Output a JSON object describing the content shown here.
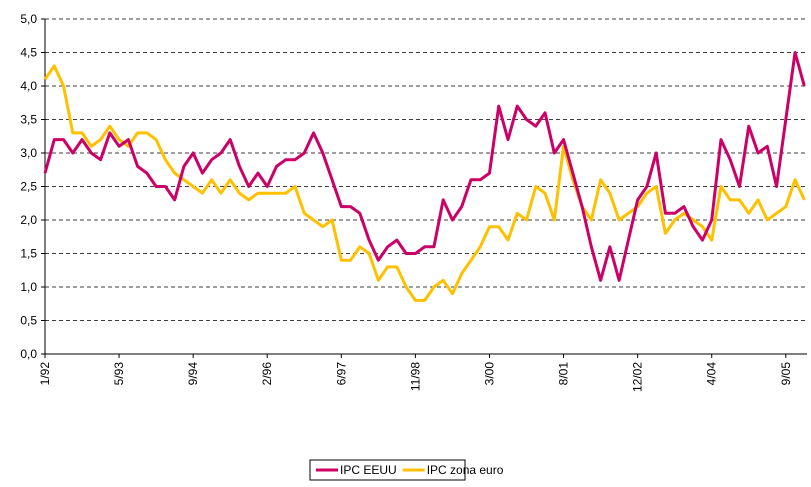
{
  "chart_data": {
    "type": "line",
    "categories": [
      "1/92",
      null,
      null,
      null,
      null,
      null,
      null,
      null,
      "5/93",
      null,
      null,
      null,
      null,
      null,
      null,
      null,
      "9/94",
      null,
      null,
      null,
      null,
      null,
      null,
      null,
      "2/96",
      null,
      null,
      null,
      null,
      null,
      null,
      null,
      "6/97",
      null,
      null,
      null,
      null,
      null,
      null,
      null,
      "11/98",
      null,
      null,
      null,
      null,
      null,
      null,
      null,
      "3/00",
      null,
      null,
      null,
      null,
      null,
      null,
      null,
      "8/01",
      null,
      null,
      null,
      null,
      null,
      null,
      null,
      "12/02",
      null,
      null,
      null,
      null,
      null,
      null,
      null,
      "4/04",
      null,
      null,
      null,
      null,
      null,
      null,
      null,
      "9/05",
      null,
      null
    ],
    "series": [
      {
        "name": "IPC EEUU",
        "color": "#cc0066",
        "values": [
          2.7,
          3.2,
          3.2,
          3.0,
          3.2,
          3.0,
          2.9,
          3.3,
          3.1,
          3.2,
          2.8,
          2.7,
          2.5,
          2.5,
          2.3,
          2.8,
          3.0,
          2.7,
          2.9,
          3.0,
          3.2,
          2.8,
          2.5,
          2.7,
          2.5,
          2.8,
          2.9,
          2.9,
          3.0,
          3.3,
          3.0,
          2.6,
          2.2,
          2.2,
          2.1,
          1.7,
          1.4,
          1.6,
          1.7,
          1.5,
          1.5,
          1.6,
          1.6,
          2.3,
          2.0,
          2.2,
          2.6,
          2.6,
          2.7,
          3.7,
          3.2,
          3.7,
          3.5,
          3.4,
          3.6,
          3.0,
          3.2,
          2.7,
          2.2,
          1.6,
          1.1,
          1.6,
          1.1,
          1.7,
          2.3,
          2.5,
          3.0,
          2.1,
          2.1,
          2.2,
          1.9,
          1.7,
          2.0,
          3.2,
          2.9,
          2.5,
          3.4,
          3.0,
          3.1,
          2.5,
          3.5,
          4.5,
          4.0
        ]
      },
      {
        "name": "IPC zona euro",
        "color": "#ffc000",
        "values": [
          4.1,
          4.3,
          4.0,
          3.3,
          3.3,
          3.1,
          3.2,
          3.4,
          3.2,
          3.1,
          3.3,
          3.3,
          3.2,
          2.9,
          2.7,
          2.6,
          2.5,
          2.4,
          2.6,
          2.4,
          2.6,
          2.4,
          2.3,
          2.4,
          2.4,
          2.4,
          2.4,
          2.5,
          2.1,
          2.0,
          1.9,
          2.0,
          1.4,
          1.4,
          1.6,
          1.5,
          1.1,
          1.3,
          1.3,
          1.0,
          0.8,
          0.8,
          1.0,
          1.1,
          0.9,
          1.2,
          1.4,
          1.6,
          1.9,
          1.9,
          1.7,
          2.1,
          2.0,
          2.5,
          2.4,
          2.0,
          3.1,
          2.6,
          2.2,
          2.0,
          2.6,
          2.4,
          2.0,
          2.1,
          2.2,
          2.4,
          2.5,
          1.8,
          2.0,
          2.1,
          2.0,
          1.9,
          1.7,
          2.5,
          2.3,
          2.3,
          2.1,
          2.3,
          2.0,
          2.1,
          2.2,
          2.6,
          2.3
        ]
      }
    ],
    "ylim": [
      0,
      5
    ],
    "yticks": [
      {
        "value": 0,
        "label": "0,0"
      },
      {
        "value": 0.5,
        "label": "0,5"
      },
      {
        "value": 1,
        "label": "1,0"
      },
      {
        "value": 1.5,
        "label": "1,5"
      },
      {
        "value": 2,
        "label": "2,0"
      },
      {
        "value": 2.5,
        "label": "2,5"
      },
      {
        "value": 3,
        "label": "3,0"
      },
      {
        "value": 3.5,
        "label": "3,5"
      },
      {
        "value": 4,
        "label": "4,0"
      },
      {
        "value": 4.5,
        "label": "4,5"
      },
      {
        "value": 5,
        "label": "5,0"
      }
    ],
    "grid": true,
    "legend": "bottom"
  }
}
